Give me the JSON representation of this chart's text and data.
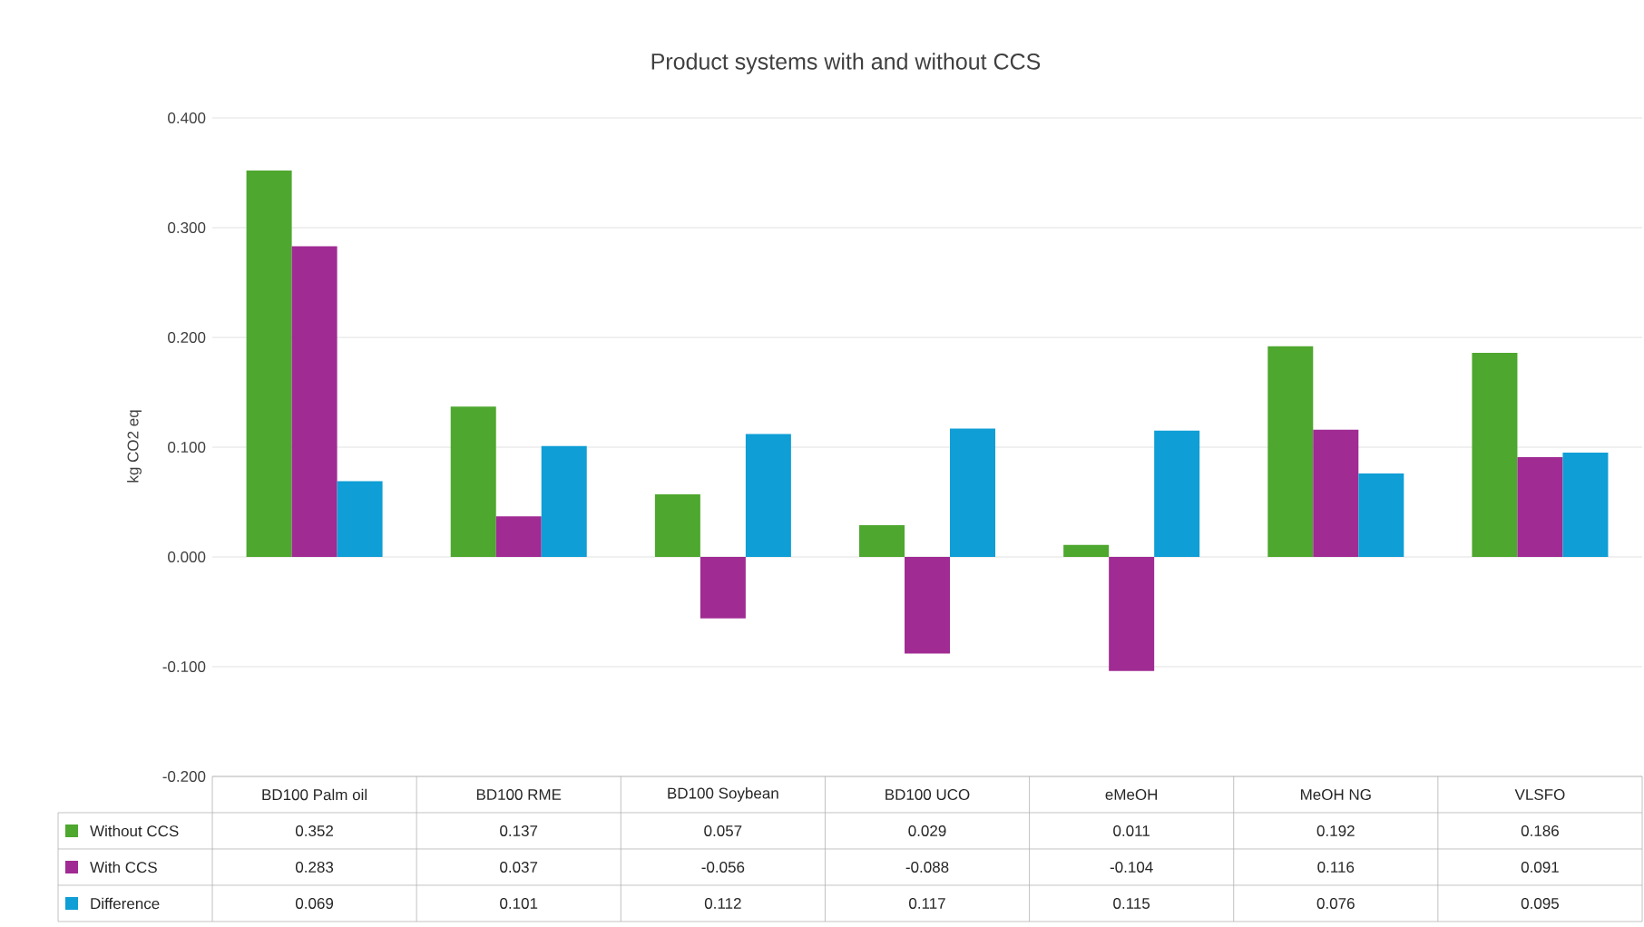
{
  "chart_data": {
    "type": "bar",
    "title": "Product systems with and without CCS",
    "ylabel": "kg CO2 eq",
    "categories": [
      "BD100 Palm oil",
      "BD100 RME",
      "BD100 Soybean",
      "BD100 UCO",
      "eMeOH",
      "MeOH NG",
      "VLSFO"
    ],
    "series": [
      {
        "name": "Without CCS",
        "color": "#4ea72e",
        "values": [
          0.352,
          0.137,
          0.057,
          0.029,
          0.011,
          0.192,
          0.186
        ]
      },
      {
        "name": "With CCS",
        "color": "#a02b93",
        "values": [
          0.283,
          0.037,
          -0.056,
          -0.088,
          -0.104,
          0.116,
          0.091
        ]
      },
      {
        "name": "Difference",
        "color": "#0f9ed5",
        "values": [
          0.069,
          0.101,
          0.112,
          0.117,
          0.115,
          0.076,
          0.095
        ]
      }
    ],
    "ylim": [
      -0.2,
      0.4
    ],
    "yticks": [
      {
        "value": -0.2,
        "label": "-0.200"
      },
      {
        "value": -0.1,
        "label": "-0.100"
      },
      {
        "value": 0,
        "label": "0.000"
      },
      {
        "value": 0.1,
        "label": "0.100"
      },
      {
        "value": 0.2,
        "label": "0.200"
      },
      {
        "value": 0.3,
        "label": "0.300"
      },
      {
        "value": 0.4,
        "label": "0.400"
      }
    ],
    "grid": "y",
    "legend": "bottom",
    "data_labels": true
  }
}
